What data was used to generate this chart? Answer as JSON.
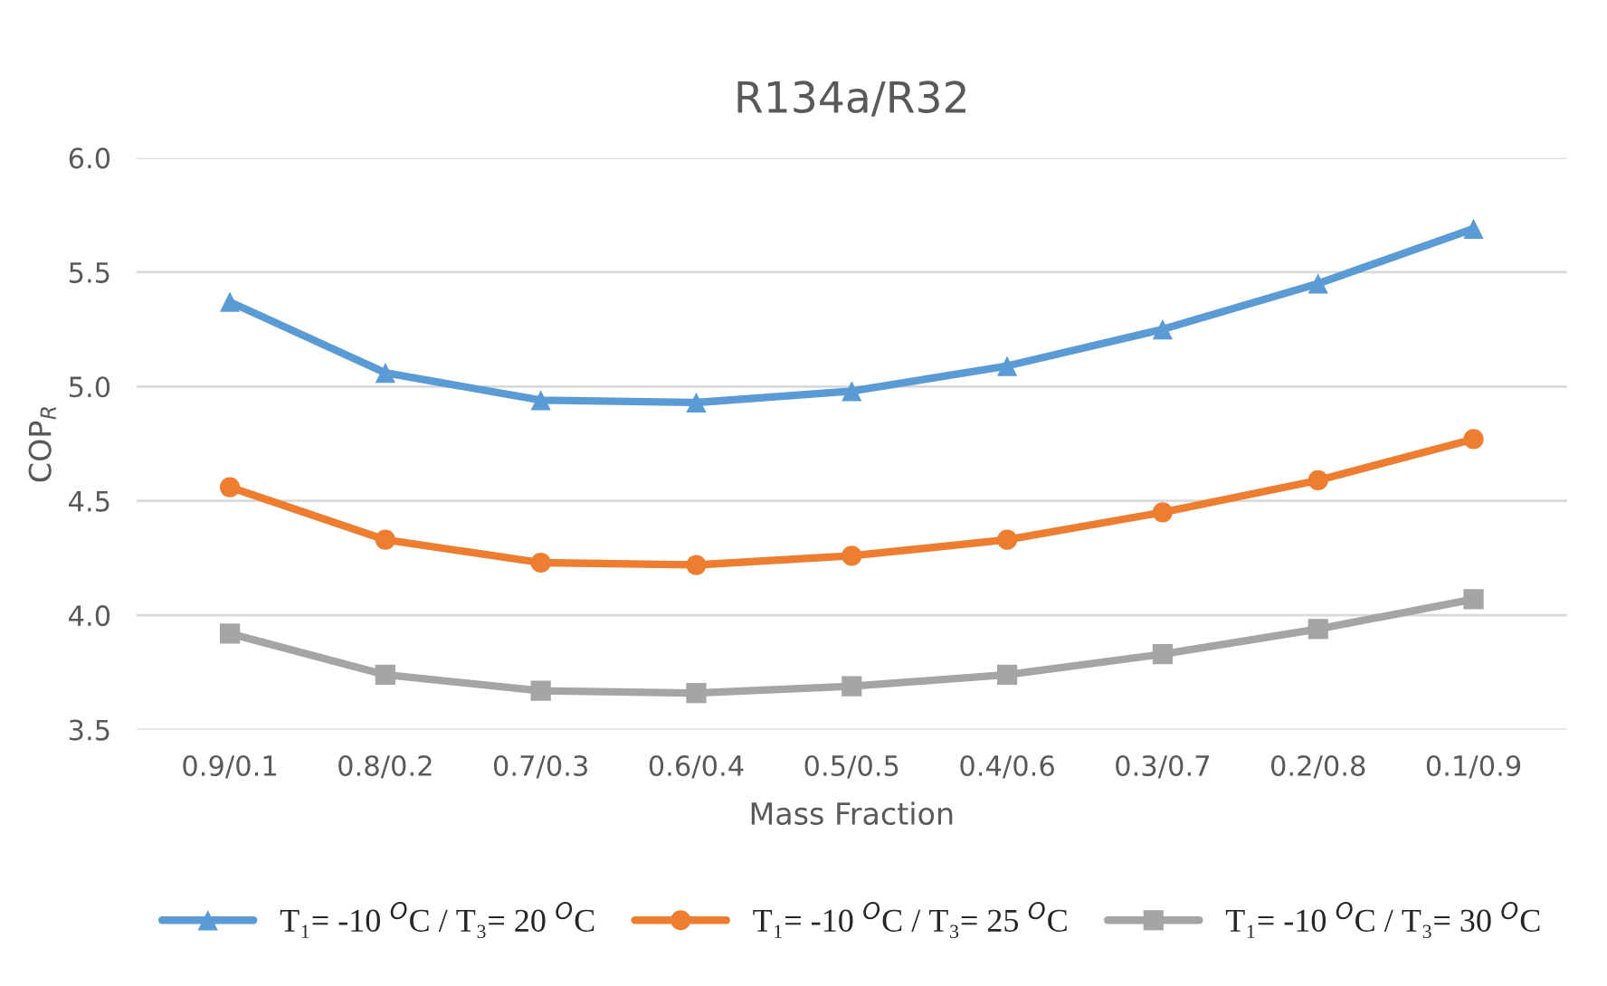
{
  "chart_data": {
    "type": "line",
    "title": "R134a/R32",
    "xlabel": "Mass Fraction",
    "ylabel": "COP$_{R}$",
    "categories": [
      "0.9/0.1",
      "0.8/0.2",
      "0.7/0.3",
      "0.6/0.4",
      "0.5/0.5",
      "0.4/0.6",
      "0.3/0.7",
      "0.2/0.8",
      "0.1/0.9"
    ],
    "series": [
      {
        "name": "T₁= -10 $^{O}$C / T₃= 20 $^{O}$C",
        "color": "#5b9bd5",
        "marker": "triangle",
        "values": [
          5.37,
          5.06,
          4.94,
          4.93,
          4.98,
          5.09,
          5.25,
          5.45,
          5.69
        ]
      },
      {
        "name": "T₁= -10 $^{O}$C / T₃= 25 $^{O}$C",
        "color": "#ed7d31",
        "marker": "circle",
        "values": [
          4.56,
          4.33,
          4.23,
          4.22,
          4.26,
          4.33,
          4.45,
          4.59,
          4.77
        ]
      },
      {
        "name": "T₁= -10 $^{O}$C / T₃= 30 $^{O}$C",
        "color": "#a5a5a5",
        "marker": "square",
        "values": [
          3.92,
          3.74,
          3.67,
          3.66,
          3.69,
          3.74,
          3.83,
          3.94,
          4.07
        ]
      }
    ],
    "ylim": [
      3.5,
      6.0
    ],
    "yticks": [
      {
        "value": 3.5,
        "label": "3.5"
      },
      {
        "value": 4.0,
        "label": "4.0"
      },
      {
        "value": 4.5,
        "label": "4.5"
      },
      {
        "value": 5.0,
        "label": "5.0"
      },
      {
        "value": 5.5,
        "label": "5.5"
      },
      {
        "value": 6.0,
        "label": "6.0"
      }
    ],
    "grid": "y",
    "legend": "bottom",
    "line_style": "solid"
  }
}
